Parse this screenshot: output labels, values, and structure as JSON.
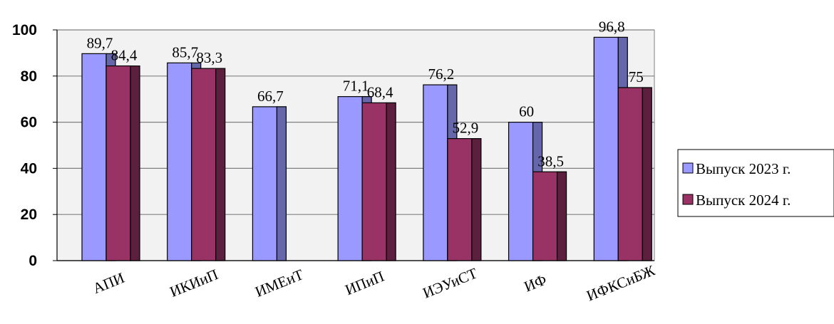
{
  "chart_data": {
    "type": "bar",
    "categories": [
      "АПИ",
      "ИКИиП",
      "ИМЕиТ",
      "ИПиП",
      "ИЭУиСТ",
      "ИФ",
      "ИФКСиБЖ"
    ],
    "series": [
      {
        "name": "Выпуск 2023 г.",
        "values": [
          89.7,
          85.7,
          66.7,
          71.1,
          76.2,
          60,
          96.8
        ],
        "labels": [
          "89,7",
          "85,7",
          "66,7",
          "71,1",
          "76,2",
          "60",
          "96,8"
        ],
        "color": "#9999ff",
        "side_color": "#6666aa"
      },
      {
        "name": "Выпуск 2024 г.",
        "values": [
          84.4,
          83.3,
          null,
          68.4,
          52.9,
          38.5,
          75
        ],
        "labels": [
          "84,4",
          "83,3",
          "",
          "68,4",
          "52,9",
          "38,5",
          "75"
        ],
        "color": "#993366",
        "side_color": "#5c1f3d"
      }
    ],
    "yticks": [
      "0",
      "20",
      "40",
      "60",
      "80",
      "100"
    ],
    "ylim": [
      0,
      100
    ],
    "grid": true,
    "legend_position": "right",
    "plot_background": "#f2f2f2",
    "title": "",
    "xlabel": "",
    "ylabel": ""
  }
}
